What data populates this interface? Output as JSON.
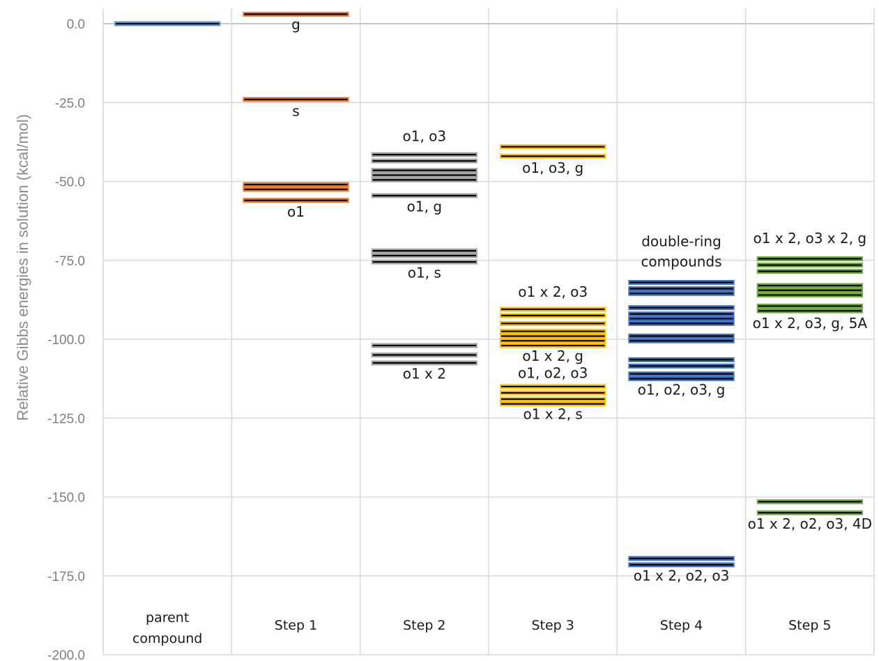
{
  "chart_data": {
    "type": "energy-level",
    "ylabel": "Relative Gibbs energies in solution (kcal/mol)",
    "ylim": [
      -200,
      5
    ],
    "yticks": [
      0,
      -25,
      -50,
      -75,
      -100,
      -125,
      -150,
      -175,
      -200
    ],
    "ytick_labels": [
      "0.0",
      "-25.0",
      "-50.0",
      "-75.0",
      "-100.0",
      "-125.0",
      "-150.0",
      "-175.0",
      "-200.0"
    ],
    "grid": true,
    "category_labels": [
      [
        "parent",
        "compound"
      ],
      [
        "Step 1"
      ],
      [
        "Step 2"
      ],
      [
        "Step 3"
      ],
      [
        "Step 4"
      ],
      [
        "Step 5"
      ]
    ],
    "series": [
      {
        "color": "#5b9bd5",
        "levels": [
          0
        ]
      },
      {
        "color": "#ed7d31",
        "levels": [
          3,
          -24,
          -51,
          -52.5,
          -56
        ]
      },
      {
        "color": "#a5a5a5",
        "levels": [
          -41.5,
          -43.5,
          -46.5,
          -48,
          -49.5,
          -54.5,
          -72,
          -73.5,
          -75.5,
          -102,
          -105,
          -107.5
        ]
      },
      {
        "color": "#ffc000",
        "levels": [
          -39,
          -42,
          -90.5,
          -92.5,
          -95,
          -97.5,
          -99,
          -100.5,
          -102,
          -115,
          -117,
          -119,
          -120.5
        ]
      },
      {
        "color": "#4472c4",
        "levels": [
          -82,
          -84,
          -85.5,
          -90,
          -92,
          -93.5,
          -95,
          -99,
          -100.5,
          -106.5,
          -108.5,
          -111,
          -112.5,
          -169.5,
          -171.5
        ]
      },
      {
        "color": "#70ad47",
        "levels": [
          -74.5,
          -76.5,
          -78.5,
          -83,
          -84.5,
          -86,
          -89.5,
          -91,
          -151.5,
          -155
        ]
      }
    ],
    "annotations": [
      {
        "category": 1,
        "y": -1.8,
        "lines": [
          "g"
        ]
      },
      {
        "category": 1,
        "y": -29.2,
        "lines": [
          "s"
        ]
      },
      {
        "category": 1,
        "y": -61.2,
        "lines": [
          "o1"
        ]
      },
      {
        "category": 2,
        "y": -37.2,
        "lines": [
          "o1, o3"
        ]
      },
      {
        "category": 2,
        "y": -59.5,
        "lines": [
          "o1, g"
        ]
      },
      {
        "category": 2,
        "y": -80.5,
        "lines": [
          "o1, s"
        ]
      },
      {
        "category": 2,
        "y": -112.5,
        "lines": [
          "o1 x 2"
        ]
      },
      {
        "category": 3,
        "y": -47.2,
        "lines": [
          "o1, o3, g"
        ]
      },
      {
        "category": 3,
        "y": -86.5,
        "lines": [
          "o1 x 2, o3"
        ]
      },
      {
        "category": 3,
        "y": -106.8,
        "lines": [
          "o1 x 2, g"
        ]
      },
      {
        "category": 3,
        "y": -112.2,
        "lines": [
          "o1, o2, o3"
        ]
      },
      {
        "category": 3,
        "y": -125.3,
        "lines": [
          "o1 x 2, s"
        ]
      },
      {
        "category": 4,
        "y": -70.5,
        "lines": [
          "double-ring",
          "compounds"
        ]
      },
      {
        "category": 4,
        "y": -117.5,
        "lines": [
          "o1, o2, o3, g"
        ]
      },
      {
        "category": 4,
        "y": -176.5,
        "lines": [
          "o1 x 2, o2, o3"
        ]
      },
      {
        "category": 5,
        "y": -69.5,
        "lines": [
          "o1 x 2, o3 x 2, g"
        ]
      },
      {
        "category": 5,
        "y": -96.5,
        "lines": [
          "o1 x 2, o3, g, 5A"
        ]
      },
      {
        "category": 5,
        "y": -160,
        "lines": [
          "o1 x 2, o2, o3, 4D"
        ]
      }
    ]
  }
}
